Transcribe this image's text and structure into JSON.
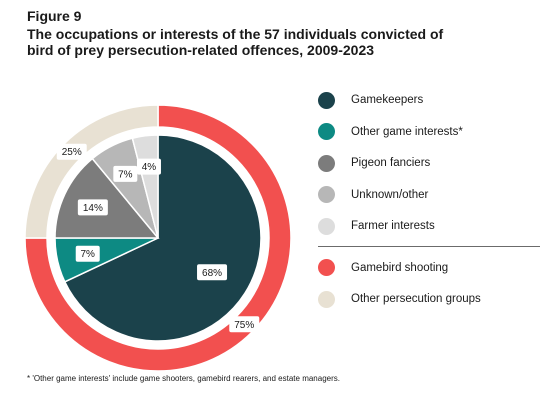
{
  "figure_label": "Figure 9",
  "title": "The occupations or interests of the 57 individuals convicted of bird of prey persecution-related offences, 2009-2023",
  "footnote": "* 'Other game interests' include game shooters, gamebird rearers, and estate managers.",
  "chart_data": [
    {
      "type": "pie",
      "ring": "inner",
      "slices": [
        {
          "label": "Gamekeepers",
          "value": 68,
          "display": "68%",
          "color": "#1b424b"
        },
        {
          "label": "Other game interests*",
          "value": 7,
          "display": "7%",
          "color": "#0d8a83"
        },
        {
          "label": "Pigeon fanciers",
          "value": 14,
          "display": "14%",
          "color": "#7c7c7c"
        },
        {
          "label": "Unknown/other",
          "value": 7,
          "display": "7%",
          "color": "#b7b7b7"
        },
        {
          "label": "Farmer interests",
          "value": 4,
          "display": "4%",
          "color": "#dddddd"
        }
      ]
    },
    {
      "type": "pie",
      "ring": "outer",
      "slices": [
        {
          "label": "Gamebird shooting",
          "value": 75,
          "display": "75%",
          "color": "#f2504f"
        },
        {
          "label": "Other persecution groups",
          "value": 25,
          "display": "25%",
          "color": "#e8e1d3"
        }
      ]
    }
  ],
  "legend": {
    "items": [
      {
        "label": "Gamekeepers",
        "color": "#1b424b"
      },
      {
        "label": "Other game interests*",
        "color": "#0d8a83"
      },
      {
        "label": "Pigeon fanciers",
        "color": "#7c7c7c"
      },
      {
        "label": "Unknown/other",
        "color": "#b7b7b7"
      },
      {
        "label": "Farmer interests",
        "color": "#dddddd"
      }
    ],
    "groups": [
      {
        "label": "Gamebird shooting",
        "color": "#f2504f"
      },
      {
        "label": "Other persecution groups",
        "color": "#e8e1d3"
      }
    ]
  }
}
